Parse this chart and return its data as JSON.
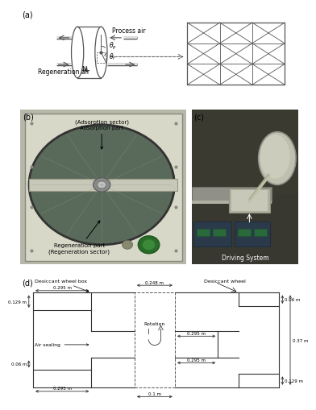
{
  "panel_a_label": "(a)",
  "panel_b_label": "(b)",
  "panel_c_label": "(c)",
  "panel_d_label": "(d)",
  "process_air_label": "Process air",
  "regeneration_air_label": "Regeneration air",
  "N_label": "N",
  "adsorption_label": "(Adsorption sector)\nAdsorption part",
  "regeneration_label": "Regeneration part\n(Regeneration sector)",
  "driving_label": "Driving System",
  "desiccant_wheel_box_label": "Desiccant wheel box",
  "desiccant_wheel_label": "Desiccant wheel",
  "rotation_label": "Rotation",
  "air_sealing_label": "Air sealing",
  "dim_0248": "0.248 m",
  "dim_0295_top": "0.295 m",
  "dim_0129_left": "0.129 m",
  "dim_006_right_top": "0.06 m",
  "dim_0295_mid1": "0.295 m",
  "dim_0295_mid2": "0.295 m",
  "dim_006_left": "0.06 m",
  "dim_0295_bottom": "0.295 m",
  "dim_01": "0.1 m",
  "dim_0129_right": "0.129 m",
  "dim_037": "0.37 m"
}
